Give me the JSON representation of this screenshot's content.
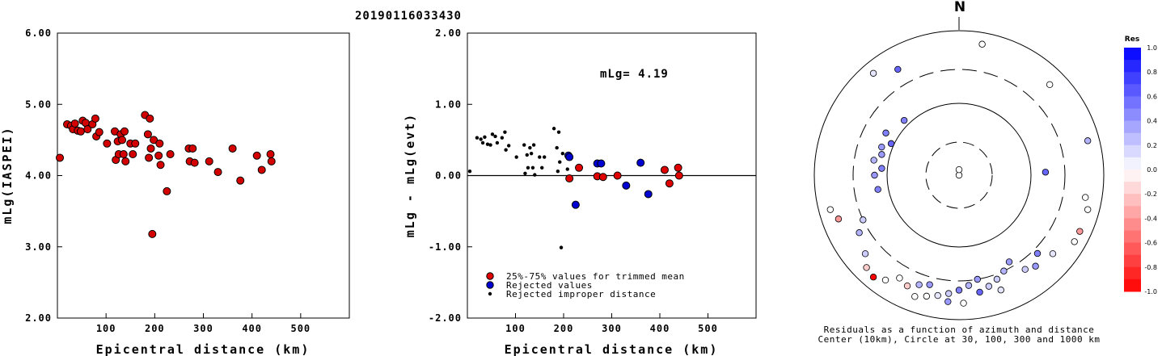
{
  "title": "20190116033430",
  "chart_data": [
    {
      "type": "scatter",
      "name_hint": "left",
      "xlabel": "Epicentral distance (km)",
      "ylabel": "mLg(IASPEI)",
      "xlim": [
        0,
        600
      ],
      "ylim": [
        2.0,
        6.0
      ],
      "xticks": [
        "100",
        "200",
        "300",
        "400",
        "500"
      ],
      "yticks": [
        "2.00",
        "3.00",
        "4.00",
        "5.00",
        "6.00"
      ],
      "points": [
        [
          5,
          4.25
        ],
        [
          20,
          4.72
        ],
        [
          28,
          4.7
        ],
        [
          32,
          4.65
        ],
        [
          36,
          4.73
        ],
        [
          42,
          4.63
        ],
        [
          48,
          4.62
        ],
        [
          52,
          4.77
        ],
        [
          58,
          4.74
        ],
        [
          62,
          4.65
        ],
        [
          72,
          4.72
        ],
        [
          78,
          4.8
        ],
        [
          80,
          4.55
        ],
        [
          86,
          4.61
        ],
        [
          102,
          4.45
        ],
        [
          118,
          4.62
        ],
        [
          120,
          4.22
        ],
        [
          124,
          4.48
        ],
        [
          126,
          4.3
        ],
        [
          130,
          4.58
        ],
        [
          133,
          4.5
        ],
        [
          136,
          4.3
        ],
        [
          138,
          4.62
        ],
        [
          140,
          4.2
        ],
        [
          150,
          4.45
        ],
        [
          155,
          4.3
        ],
        [
          160,
          4.45
        ],
        [
          180,
          4.85
        ],
        [
          186,
          4.58
        ],
        [
          188,
          4.25
        ],
        [
          190,
          4.8
        ],
        [
          192,
          4.38
        ],
        [
          195,
          3.18
        ],
        [
          198,
          4.5
        ],
        [
          208,
          4.28
        ],
        [
          210,
          4.45
        ],
        [
          212,
          4.15
        ],
        [
          225,
          3.78
        ],
        [
          232,
          4.3
        ],
        [
          270,
          4.38
        ],
        [
          272,
          4.2
        ],
        [
          278,
          4.38
        ],
        [
          282,
          4.18
        ],
        [
          312,
          4.2
        ],
        [
          330,
          4.05
        ],
        [
          360,
          4.38
        ],
        [
          376,
          3.93
        ],
        [
          410,
          4.28
        ],
        [
          420,
          4.08
        ],
        [
          438,
          4.3
        ],
        [
          440,
          4.2
        ]
      ]
    },
    {
      "type": "scatter",
      "name_hint": "middle",
      "xlabel": "Epicentral distance (km)",
      "ylabel": "mLg - mLg(evt)",
      "xlim": [
        0,
        600
      ],
      "ylim": [
        -2.0,
        2.0
      ],
      "xticks": [
        "100",
        "200",
        "300",
        "400",
        "500"
      ],
      "yticks": [
        "-2.00",
        "-1.00",
        "0.00",
        "1.00",
        "2.00"
      ],
      "annotation": "mLg= 4.19",
      "legend": [
        {
          "label": "25%-75% values for trimmed mean",
          "color": "#e00000"
        },
        {
          "label": "Rejected values",
          "color": "#0000d0"
        },
        {
          "label": "Rejected improper distance",
          "color": "#000000"
        }
      ],
      "series": [
        {
          "name": "25%-75% values for trimmed mean",
          "color": "#e00000",
          "size": 4.5,
          "points": [
            [
              212,
              -0.04
            ],
            [
              232,
              0.11
            ],
            [
              270,
              -0.01
            ],
            [
              282,
              -0.02
            ],
            [
              312,
              0.0
            ],
            [
              410,
              0.08
            ],
            [
              420,
              -0.11
            ],
            [
              438,
              0.11
            ],
            [
              440,
              0.0
            ]
          ]
        },
        {
          "name": "Rejected values",
          "color": "#0000d0",
          "size": 4.5,
          "points": [
            [
              210,
              0.28
            ],
            [
              212,
              0.26
            ],
            [
              225,
              -0.41
            ],
            [
              270,
              0.17
            ],
            [
              278,
              0.17
            ],
            [
              330,
              -0.14
            ],
            [
              360,
              0.18
            ],
            [
              376,
              -0.26
            ]
          ]
        },
        {
          "name": "Rejected improper distance",
          "color": "#000000",
          "size": 2.2,
          "points": [
            [
              5,
              0.06
            ],
            [
              20,
              0.53
            ],
            [
              28,
              0.51
            ],
            [
              32,
              0.46
            ],
            [
              36,
              0.54
            ],
            [
              42,
              0.44
            ],
            [
              48,
              0.43
            ],
            [
              52,
              0.58
            ],
            [
              58,
              0.55
            ],
            [
              62,
              0.46
            ],
            [
              72,
              0.53
            ],
            [
              78,
              0.61
            ],
            [
              80,
              0.36
            ],
            [
              86,
              0.42
            ],
            [
              102,
              0.26
            ],
            [
              118,
              0.43
            ],
            [
              120,
              0.03
            ],
            [
              124,
              0.29
            ],
            [
              126,
              0.11
            ],
            [
              130,
              0.39
            ],
            [
              133,
              0.31
            ],
            [
              136,
              0.11
            ],
            [
              138,
              0.43
            ],
            [
              140,
              0.01
            ],
            [
              150,
              0.26
            ],
            [
              155,
              0.11
            ],
            [
              160,
              0.26
            ],
            [
              180,
              0.66
            ],
            [
              186,
              0.39
            ],
            [
              188,
              0.06
            ],
            [
              190,
              0.61
            ],
            [
              192,
              0.19
            ],
            [
              195,
              -1.01
            ],
            [
              198,
              0.31
            ],
            [
              208,
              0.09
            ]
          ]
        }
      ]
    },
    {
      "type": "scatter",
      "name_hint": "polar",
      "north_label": "N",
      "caption_line1": "Residuals as a function of azimuth and distance",
      "caption_line2": "Center (10km), Circle at 30, 100, 300 and 1000 km",
      "colorbar_title": "Res",
      "colorbar_ticks": [
        "1.0",
        "0.8",
        "0.6",
        "0.4",
        "0.2",
        "0.0",
        "-0.2",
        "-0.4",
        "-0.6",
        "-0.8",
        "-1.0"
      ],
      "points": [
        {
          "az": 0,
          "dist": 10,
          "res": 0.0
        },
        {
          "az": 0,
          "dist": 12,
          "res": 0.0
        },
        {
          "az": 315,
          "dist": 120,
          "res": 0.5
        },
        {
          "az": 300,
          "dist": 150,
          "res": 0.5
        },
        {
          "az": 290,
          "dist": 140,
          "res": 0.4
        },
        {
          "az": 295,
          "dist": 110,
          "res": 0.6
        },
        {
          "az": 285,
          "dist": 130,
          "res": 0.4
        },
        {
          "az": 280,
          "dist": 160,
          "res": 0.3
        },
        {
          "az": 275,
          "dist": 120,
          "res": 0.5
        },
        {
          "az": 270,
          "dist": 150,
          "res": 0.4
        },
        {
          "az": 260,
          "dist": 140,
          "res": 0.5
        },
        {
          "az": 88,
          "dist": 160,
          "res": 0.6
        },
        {
          "az": 330,
          "dist": 500,
          "res": 0.6
        },
        {
          "az": 320,
          "dist": 700,
          "res": 0.1
        },
        {
          "az": 10,
          "dist": 700,
          "res": 0.0
        },
        {
          "az": 45,
          "dist": 600,
          "res": 0.0
        },
        {
          "az": 75,
          "dist": 700,
          "res": 0.3
        },
        {
          "az": 100,
          "dist": 600,
          "res": 0.0
        },
        {
          "az": 105,
          "dist": 700,
          "res": 0.0
        },
        {
          "az": 115,
          "dist": 700,
          "res": -0.4
        },
        {
          "az": 130,
          "dist": 500,
          "res": 0.1
        },
        {
          "az": 120,
          "dist": 700,
          "res": 0.0
        },
        {
          "az": 150,
          "dist": 250,
          "res": 0.4
        },
        {
          "az": 155,
          "dist": 300,
          "res": 0.3
        },
        {
          "az": 160,
          "dist": 350,
          "res": 0.2
        },
        {
          "az": 165,
          "dist": 400,
          "res": 0.2
        },
        {
          "az": 170,
          "dist": 300,
          "res": 0.4
        },
        {
          "az": 175,
          "dist": 350,
          "res": 0.3
        },
        {
          "az": 180,
          "dist": 400,
          "res": 0.5
        },
        {
          "az": 185,
          "dist": 450,
          "res": 0.2
        },
        {
          "az": 190,
          "dist": 500,
          "res": 0.1
        },
        {
          "az": 195,
          "dist": 380,
          "res": 0.4
        },
        {
          "az": 200,
          "dist": 420,
          "res": 0.3
        },
        {
          "az": 205,
          "dist": 500,
          "res": -0.2
        },
        {
          "az": 210,
          "dist": 450,
          "res": 0.0
        },
        {
          "az": 215,
          "dist": 600,
          "res": 0.0
        },
        {
          "az": 220,
          "dist": 700,
          "res": -1.0
        },
        {
          "az": 225,
          "dist": 650,
          "res": -0.2
        },
        {
          "az": 230,
          "dist": 500,
          "res": 0.2
        },
        {
          "az": 240,
          "dist": 400,
          "res": 0.3
        },
        {
          "az": 250,
          "dist": 600,
          "res": -0.4
        },
        {
          "az": 255,
          "dist": 700,
          "res": 0.0
        },
        {
          "az": 245,
          "dist": 300,
          "res": 0.2
        },
        {
          "az": 140,
          "dist": 450,
          "res": 0.4
        },
        {
          "az": 135,
          "dist": 350,
          "res": 0.5
        },
        {
          "az": 145,
          "dist": 400,
          "res": 0.2
        },
        {
          "az": 160,
          "dist": 500,
          "res": 0.1
        },
        {
          "az": 170,
          "dist": 450,
          "res": 0.6
        },
        {
          "az": 178,
          "dist": 600,
          "res": 0.0
        },
        {
          "az": 185,
          "dist": 580,
          "res": 0.4
        },
        {
          "az": 195,
          "dist": 550,
          "res": 0.0
        },
        {
          "az": 200,
          "dist": 620,
          "res": 0.0
        }
      ]
    }
  ]
}
